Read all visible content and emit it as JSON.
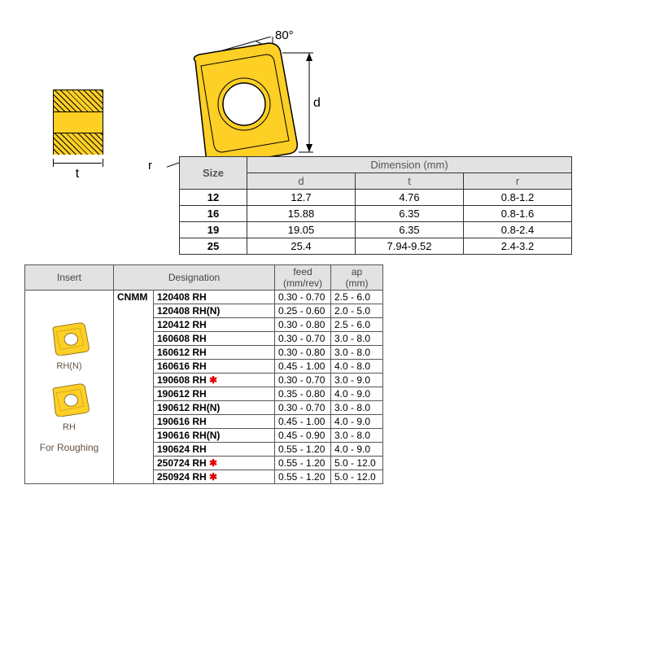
{
  "diagram": {
    "angle": "80°",
    "d_label": "d",
    "t_label": "t",
    "r_label": "r",
    "insert_fill": "#fecf24",
    "insert_stroke": "#000000"
  },
  "dim_table": {
    "headers": {
      "size": "Size",
      "dimension": "Dimension (mm)",
      "d": "d",
      "t": "t",
      "r": "r"
    },
    "rows": [
      {
        "size": "12",
        "d": "12.7",
        "t": "4.76",
        "r": "0.8-1.2"
      },
      {
        "size": "16",
        "d": "15.88",
        "t": "6.35",
        "r": "0.8-1.6"
      },
      {
        "size": "19",
        "d": "19.05",
        "t": "6.35",
        "r": "0.8-2.4"
      },
      {
        "size": "25",
        "d": "25.4",
        "t": "7.94-9.52",
        "r": "2.4-3.2"
      }
    ]
  },
  "spec_table": {
    "headers": {
      "insert": "Insert",
      "designation": "Designation",
      "feed": "feed\n(mm/rev)",
      "ap": "ap\n(mm)"
    },
    "cnmm": "CNMM",
    "insert_labels": {
      "rhn": "RH(N)",
      "rh": "RH",
      "roughing": "For Roughing"
    },
    "rows": [
      {
        "desig": "120408 RH",
        "star": false,
        "feed": "0.30 - 0.70",
        "ap": "2.5 - 6.0"
      },
      {
        "desig": "120408 RH(N)",
        "star": false,
        "feed": "0.25 - 0.60",
        "ap": "2.0 - 5.0"
      },
      {
        "desig": "120412 RH",
        "star": false,
        "feed": "0.30 - 0.80",
        "ap": "2.5 - 6.0"
      },
      {
        "desig": "160608 RH",
        "star": false,
        "feed": "0.30 - 0.70",
        "ap": "3.0 - 8.0"
      },
      {
        "desig": "160612 RH",
        "star": false,
        "feed": "0.30 - 0.80",
        "ap": "3.0 - 8.0"
      },
      {
        "desig": "160616 RH",
        "star": false,
        "feed": "0.45 - 1.00",
        "ap": "4.0 - 8.0"
      },
      {
        "desig": "190608 RH",
        "star": true,
        "feed": "0.30 - 0.70",
        "ap": "3.0 - 9.0"
      },
      {
        "desig": "190612 RH",
        "star": false,
        "feed": "0.35 - 0.80",
        "ap": "4.0 - 9.0"
      },
      {
        "desig": "190612 RH(N)",
        "star": false,
        "feed": "0.30 - 0.70",
        "ap": "3.0 - 8.0"
      },
      {
        "desig": "190616 RH",
        "star": false,
        "feed": "0.45 - 1.00",
        "ap": "4.0 - 9.0"
      },
      {
        "desig": "190616 RH(N)",
        "star": false,
        "feed": "0.45 - 0.90",
        "ap": "3.0 - 8.0"
      },
      {
        "desig": "190624 RH",
        "star": false,
        "feed": "0.55 - 1.20",
        "ap": "4.0 - 9.0"
      },
      {
        "desig": "250724 RH",
        "star": true,
        "feed": "0.55 - 1.20",
        "ap": "5.0 - 12.0"
      },
      {
        "desig": "250924 RH",
        "star": true,
        "feed": "0.55 - 1.20",
        "ap": "5.0 - 12.0"
      }
    ]
  }
}
